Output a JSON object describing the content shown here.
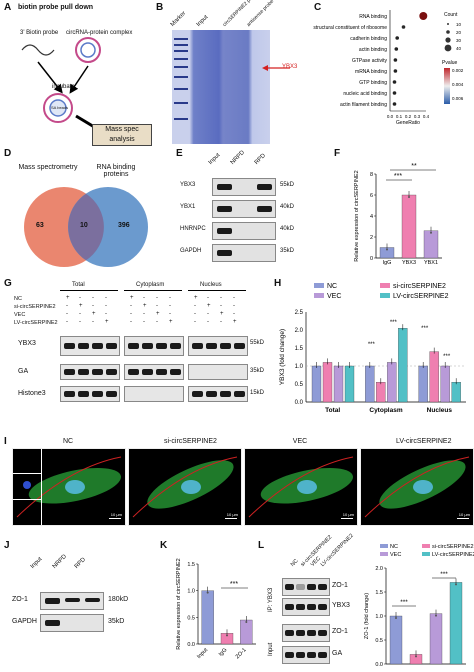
{
  "panels": {
    "A": "A",
    "B": "B",
    "C": "C",
    "D": "D",
    "E": "E",
    "F": "F",
    "G": "G",
    "H": "H",
    "I": "I",
    "J": "J",
    "K": "K",
    "L": "L"
  },
  "A": {
    "title": "biotin probe pull down",
    "biotin_probe": "3' Biotin probe",
    "complex": "circRNA-protein complex",
    "incubate": "incubate",
    "beads": "SA beads",
    "spec": "Mass spec analysis"
  },
  "B": {
    "lanes": [
      "Marker",
      "Input",
      "circSERPINE2 probe",
      "antisense probe"
    ],
    "arrow": "YBX3"
  },
  "C": {
    "terms": [
      "RNA binding",
      "structural constituent of ribosome",
      "cadherin binding",
      "actin binding",
      "GTPase activity",
      "mRNA binding",
      "GTP binding",
      "nucleic acid binding",
      "actin filament binding"
    ],
    "xlabel": "GeneRatio",
    "xticks": [
      "0.0",
      "0.1",
      "0.2",
      "0.3",
      "0.4"
    ],
    "count_title": "Count",
    "counts": [
      "10",
      "20",
      "30",
      "40"
    ],
    "pval_title": "Pvalue",
    "pvals": [
      "0.002",
      "0.004",
      "0.006"
    ]
  },
  "D": {
    "left": "Mass spectrometry",
    "right": "RNA binding proteins",
    "n_left": "63",
    "n_mid": "10",
    "n_right": "396"
  },
  "E": {
    "lanes": [
      "Input",
      "NRPD",
      "RPD"
    ],
    "rows": [
      "YBX3",
      "YBX1",
      "HNRNPC",
      "GAPDH"
    ],
    "sizes": [
      "55kD",
      "40kD",
      "40kD",
      "35kD"
    ]
  },
  "F": {
    "ylabel": "Relative expression of circSERPINE2",
    "cats": [
      "IgG",
      "YBX3",
      "YBX1"
    ],
    "yticks": [
      "0",
      "2",
      "4",
      "6",
      "8"
    ],
    "sig": [
      "***",
      "**"
    ]
  },
  "G": {
    "sections": [
      "Total",
      "Cytoplasm",
      "Nucleus"
    ],
    "conds": [
      "NC",
      "si-circSERPINE2",
      "VEC",
      "LV-circSERPINE2"
    ],
    "rows": [
      "YBX3",
      "GA",
      "Histone3"
    ],
    "sizes": [
      "55kD",
      "35kD",
      "15kD"
    ],
    "signs": [
      [
        "+",
        "-",
        "-",
        "-"
      ],
      [
        "-",
        "+",
        "-",
        "-"
      ],
      [
        "-",
        "-",
        "+",
        "-"
      ],
      [
        "-",
        "-",
        "-",
        "+"
      ]
    ]
  },
  "H": {
    "legend": [
      "NC",
      "si-circSERPINE2",
      "VEC",
      "LV-circSERPINE2"
    ],
    "ylabel": "YBX3 (fold change)",
    "yticks": [
      "0.0",
      "0.5",
      "1.0",
      "1.5",
      "2.0",
      "2.5"
    ],
    "cats": [
      "Total",
      "Cytoplasm",
      "Nucleus"
    ],
    "sig": [
      "***",
      "***",
      "***",
      "***",
      "***",
      "***"
    ]
  },
  "I": {
    "labels": [
      "NC",
      "si-circSERPINE2",
      "VEC",
      "LV-circSERPINE2"
    ],
    "scale": "10 μm"
  },
  "J": {
    "lanes": [
      "Input",
      "NRPD",
      "RPD"
    ],
    "rows": [
      "ZO-1",
      "GAPDH"
    ],
    "sizes": [
      "180kD",
      "35kD"
    ]
  },
  "K": {
    "ylabel": "Relative expression of circSERPINE2",
    "cats": [
      "Input",
      "IgG",
      "ZO-1"
    ],
    "yticks": [
      "0.0",
      "0.5",
      "1.0",
      "1.5"
    ],
    "sig": "***"
  },
  "L": {
    "lanes": [
      "NC",
      "si-circSERPINE2",
      "VEC",
      "LV-circSERPINE2"
    ],
    "ip": "IP: YBX3",
    "input": "Input",
    "rows": [
      "ZO-1",
      "YBX3",
      "ZO-1",
      "GA"
    ],
    "legend": [
      "NC",
      "si-circSERPINE2",
      "VEC",
      "LV-circSERPINE2"
    ],
    "ylabel": "ZO-1 (fold change)",
    "yticks": [
      "0.0",
      "0.5",
      "1.0",
      "1.5",
      "2.0"
    ],
    "sig": [
      "***",
      "***"
    ]
  },
  "colors": {
    "nc": "#8e9bd6",
    "si": "#ef7fb0",
    "vec": "#b89ad8",
    "lv": "#52c0c6",
    "venn_left": "#e8795f",
    "venn_right": "#5b8fc9"
  },
  "chart_data": [
    {
      "type": "scatter",
      "panel": "C",
      "title": "",
      "xlabel": "GeneRatio",
      "categories": [
        "RNA binding",
        "structural constituent of ribosome",
        "cadherin binding",
        "actin binding",
        "GTPase activity",
        "mRNA binding",
        "GTP binding",
        "nucleic acid binding",
        "actin filament binding"
      ],
      "x": [
        0.37,
        0.15,
        0.08,
        0.07,
        0.06,
        0.06,
        0.05,
        0.05,
        0.05
      ],
      "xlim": [
        0,
        0.4
      ]
    },
    {
      "type": "bar",
      "panel": "F",
      "categories": [
        "IgG",
        "YBX3",
        "YBX1"
      ],
      "values": [
        1.0,
        6.0,
        2.6
      ],
      "ylim": [
        0,
        8
      ]
    },
    {
      "type": "bar",
      "panel": "H",
      "categories": [
        "Total",
        "Cytoplasm",
        "Nucleus"
      ],
      "series": [
        {
          "name": "NC",
          "values": [
            1.0,
            1.0,
            1.0
          ]
        },
        {
          "name": "si-circSERPINE2",
          "values": [
            1.1,
            0.55,
            1.4
          ]
        },
        {
          "name": "VEC",
          "values": [
            1.0,
            1.1,
            1.0
          ]
        },
        {
          "name": "LV-circSERPINE2",
          "values": [
            1.0,
            2.05,
            0.55
          ]
        }
      ],
      "ylim": [
        0,
        2.5
      ]
    },
    {
      "type": "bar",
      "panel": "K",
      "categories": [
        "Input",
        "IgG",
        "ZO-1"
      ],
      "values": [
        1.0,
        0.2,
        0.45
      ],
      "ylim": [
        0,
        1.5
      ]
    },
    {
      "type": "bar",
      "panel": "L",
      "categories": [
        "NC",
        "si-circSERPINE2",
        "VEC",
        "LV-circSERPINE2"
      ],
      "values": [
        1.0,
        0.2,
        1.05,
        1.7
      ],
      "ylim": [
        0,
        2.0
      ]
    }
  ]
}
